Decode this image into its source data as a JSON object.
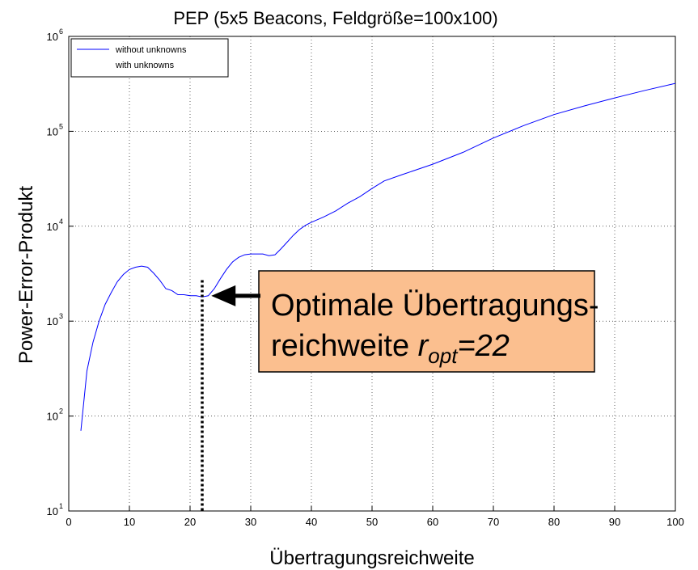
{
  "chart_data": {
    "type": "line",
    "title": "PEP (5x5 Beacons, Feldgröße=100x100)",
    "x_label": "Übertragungsreichweite",
    "y_label": "Power-Error-Produkt",
    "log_y": true,
    "grid": true,
    "legend": "upper left",
    "xlim": [
      0,
      100
    ],
    "xticks": [
      0,
      10,
      20,
      30,
      40,
      50,
      60,
      70,
      80,
      90,
      100
    ],
    "ylim": [
      10,
      1000000
    ],
    "yticks": [
      {
        "value": 10,
        "label": "10",
        "exp": "1"
      },
      {
        "value": 100,
        "label": "10",
        "exp": "2"
      },
      {
        "value": 1000,
        "label": "10",
        "exp": "3"
      },
      {
        "value": 10000,
        "label": "10",
        "exp": "4"
      },
      {
        "value": 100000,
        "label": "10",
        "exp": "5"
      },
      {
        "value": 1000000,
        "label": "10",
        "exp": "6"
      }
    ],
    "x": [
      2,
      3,
      4,
      5,
      6,
      7,
      8,
      9,
      10,
      11,
      12,
      13,
      14,
      15,
      16,
      17,
      18,
      19,
      20,
      21,
      22,
      23,
      24,
      25,
      26,
      27,
      28,
      29,
      30,
      31,
      32,
      33,
      34,
      35,
      36,
      37,
      38,
      39,
      40,
      42,
      44,
      46,
      48,
      50,
      52,
      55,
      60,
      65,
      70,
      75,
      80,
      85,
      90,
      95,
      100
    ],
    "series": [
      {
        "name": "without unknowns",
        "color": "#0000ff",
        "values": [
          70,
          300,
          600,
          1000,
          1500,
          2000,
          2600,
          3100,
          3500,
          3700,
          3800,
          3700,
          3200,
          2700,
          2200,
          2100,
          1900,
          1900,
          1850,
          1850,
          1800,
          1850,
          2200,
          2800,
          3500,
          4200,
          4700,
          5000,
          5100,
          5100,
          5100,
          4900,
          5000,
          5800,
          6800,
          8000,
          9200,
          10200,
          11000,
          12500,
          14500,
          17500,
          20500,
          25000,
          30000,
          35000,
          45000,
          60000,
          85000,
          115000,
          150000,
          185000,
          225000,
          270000,
          320000
        ]
      },
      {
        "name": "with unknowns",
        "color": "#ffffff",
        "values": [
          null,
          null,
          null,
          null,
          null,
          null,
          null,
          null,
          null,
          null,
          null,
          null,
          null,
          null,
          null,
          null,
          null,
          null,
          null,
          null,
          null,
          null,
          null,
          null,
          null,
          null,
          null,
          null,
          null,
          null,
          null,
          null,
          null,
          null,
          null,
          null,
          null,
          null,
          null,
          null,
          null,
          null,
          null,
          null,
          null,
          null,
          null,
          null,
          null,
          null,
          null,
          null,
          null,
          null,
          null
        ]
      }
    ],
    "annotation": {
      "line1": "Optimale Übertragungs-",
      "line2": "reichweite ",
      "var": "r",
      "sub": "opt",
      "eq": "=",
      "x": 22,
      "line_top": 2700,
      "arrow_point": [
        23.5,
        1850
      ],
      "color": "#fbbf8f"
    }
  }
}
